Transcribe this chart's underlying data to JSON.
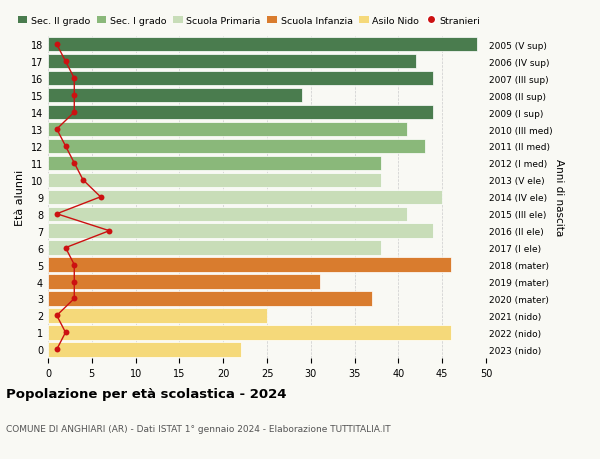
{
  "ages": [
    18,
    17,
    16,
    15,
    14,
    13,
    12,
    11,
    10,
    9,
    8,
    7,
    6,
    5,
    4,
    3,
    2,
    1,
    0
  ],
  "years": [
    "2005 (V sup)",
    "2006 (IV sup)",
    "2007 (III sup)",
    "2008 (II sup)",
    "2009 (I sup)",
    "2010 (III med)",
    "2011 (II med)",
    "2012 (I med)",
    "2013 (V ele)",
    "2014 (IV ele)",
    "2015 (III ele)",
    "2016 (II ele)",
    "2017 (I ele)",
    "2018 (mater)",
    "2019 (mater)",
    "2020 (mater)",
    "2021 (nido)",
    "2022 (nido)",
    "2023 (nido)"
  ],
  "bar_values": [
    49,
    42,
    44,
    29,
    44,
    41,
    43,
    38,
    38,
    45,
    41,
    44,
    38,
    46,
    31,
    37,
    25,
    46,
    22
  ],
  "bar_colors": [
    "#4a7c4e",
    "#4a7c4e",
    "#4a7c4e",
    "#4a7c4e",
    "#4a7c4e",
    "#8ab87a",
    "#8ab87a",
    "#8ab87a",
    "#c8ddb8",
    "#c8ddb8",
    "#c8ddb8",
    "#c8ddb8",
    "#c8ddb8",
    "#d97c2e",
    "#d97c2e",
    "#d97c2e",
    "#f5d97a",
    "#f5d97a",
    "#f5d97a"
  ],
  "stranieri": [
    1,
    2,
    3,
    3,
    3,
    1,
    2,
    3,
    4,
    6,
    1,
    7,
    2,
    3,
    3,
    3,
    1,
    2,
    1
  ],
  "xlim": [
    0,
    50
  ],
  "ylim": [
    -0.5,
    18.5
  ],
  "title": "Popolazione per età scolastica - 2024",
  "subtitle": "COMUNE DI ANGHIARI (AR) - Dati ISTAT 1° gennaio 2024 - Elaborazione TUTTITALIA.IT",
  "ylabel": "Età alunni",
  "right_label": "Anni di nascita",
  "legend_labels": [
    "Sec. II grado",
    "Sec. I grado",
    "Scuola Primaria",
    "Scuola Infanzia",
    "Asilo Nido",
    "Stranieri"
  ],
  "legend_colors": [
    "#4a7c4e",
    "#8ab87a",
    "#c8ddb8",
    "#d97c2e",
    "#f5d97a",
    "#cc1111"
  ],
  "stranieri_color": "#cc1111",
  "grid_color": "#cccccc",
  "bg_color": "#f9f9f4"
}
